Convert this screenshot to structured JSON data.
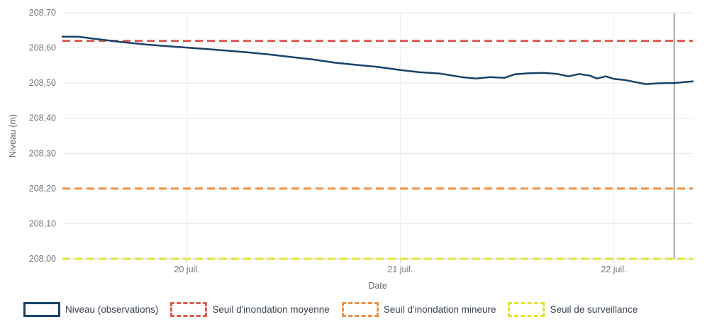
{
  "chart_data": {
    "type": "line",
    "title": "",
    "xlabel": "Date",
    "ylabel": "Niveau (m)",
    "x_axis": {
      "unit": "hours",
      "range": [
        0,
        70.9
      ],
      "ticks": [
        {
          "t": 14.0,
          "label": "20 juil."
        },
        {
          "t": 38.0,
          "label": "21 juil."
        },
        {
          "t": 62.0,
          "label": "22 juil."
        }
      ]
    },
    "y_axis": {
      "range": [
        208.0,
        208.7
      ],
      "ticks": [
        {
          "v": 208.0,
          "label": "208,00"
        },
        {
          "v": 208.1,
          "label": "208,10"
        },
        {
          "v": 208.2,
          "label": "208,20"
        },
        {
          "v": 208.3,
          "label": "208,30"
        },
        {
          "v": 208.4,
          "label": "208,40"
        },
        {
          "v": 208.5,
          "label": "208,50"
        },
        {
          "v": 208.6,
          "label": "208,60"
        },
        {
          "v": 208.7,
          "label": "208,70"
        }
      ]
    },
    "series": [
      {
        "name": "Niveau (observations)",
        "color": "#17436b",
        "style": "solid",
        "points": [
          [
            0.0,
            208.632
          ],
          [
            1.8,
            208.632
          ],
          [
            3.3,
            208.627
          ],
          [
            5.0,
            208.622
          ],
          [
            6.5,
            208.617
          ],
          [
            8.1,
            208.613
          ],
          [
            9.7,
            208.609
          ],
          [
            11.3,
            208.606
          ],
          [
            12.9,
            208.603
          ],
          [
            14.0,
            208.601
          ],
          [
            16.2,
            208.597
          ],
          [
            18.6,
            208.592
          ],
          [
            21.0,
            208.587
          ],
          [
            23.4,
            208.581
          ],
          [
            25.8,
            208.574
          ],
          [
            28.2,
            208.567
          ],
          [
            30.6,
            208.558
          ],
          [
            33.0,
            208.552
          ],
          [
            35.4,
            208.546
          ],
          [
            38.0,
            208.537
          ],
          [
            40.1,
            208.531
          ],
          [
            42.5,
            208.527
          ],
          [
            44.9,
            208.517
          ],
          [
            46.5,
            208.513
          ],
          [
            48.1,
            208.517
          ],
          [
            49.7,
            208.515
          ],
          [
            50.9,
            208.525
          ],
          [
            52.5,
            208.528
          ],
          [
            54.1,
            208.529
          ],
          [
            55.7,
            208.526
          ],
          [
            56.9,
            208.519
          ],
          [
            58.1,
            208.526
          ],
          [
            59.3,
            208.521
          ],
          [
            60.1,
            208.513
          ],
          [
            61.1,
            208.519
          ],
          [
            62.0,
            208.512
          ],
          [
            63.2,
            208.509
          ],
          [
            64.4,
            208.503
          ],
          [
            65.6,
            208.497
          ],
          [
            66.8,
            208.499
          ],
          [
            68.0,
            208.5
          ],
          [
            68.8,
            208.5
          ],
          [
            69.9,
            208.503
          ],
          [
            70.9,
            208.505
          ]
        ]
      }
    ],
    "thresholds": [
      {
        "name": "Seuil d'inondation moyenne",
        "value": 208.62,
        "color": "#db5b50"
      },
      {
        "name": "Seuil d'inondation mineure",
        "value": 208.2,
        "color": "#ef9245"
      },
      {
        "name": "Seuil de surveillance",
        "value": 208.0,
        "color": "#e2e438"
      }
    ],
    "now_line": {
      "t": 68.8,
      "color": "#a6a6a6"
    },
    "legend": {
      "items": [
        {
          "label": "Niveau (observations)",
          "color": "#17436b",
          "style": "solid"
        },
        {
          "label": "Seuil d'inondation moyenne",
          "color": "#db5b50",
          "style": "dashed"
        },
        {
          "label": "Seuil d'inondation mineure",
          "color": "#ef9245",
          "style": "dashed"
        },
        {
          "label": "Seuil de surveillance",
          "color": "#e2e438",
          "style": "dashed"
        }
      ]
    },
    "colors": {
      "grid": "#e6e6e6",
      "vgrid": "#ededed",
      "axis_line": "#d8d8d8",
      "tick_mark": "#cccccc",
      "tick_text": "#757575",
      "axis_title_text": "#666666"
    }
  }
}
